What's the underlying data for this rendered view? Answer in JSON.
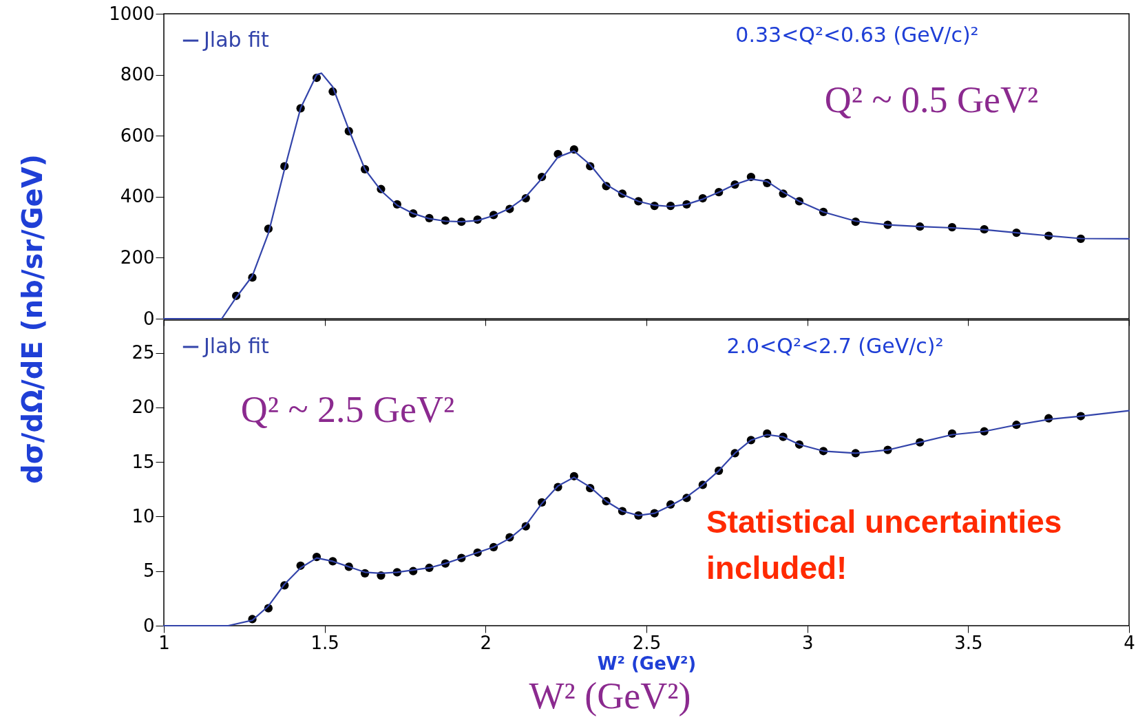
{
  "chart_data": [
    {
      "type": "scatter",
      "ylabel": "dσ/dΩ/dE (nb/sr/GeV)",
      "xlim": [
        1,
        4
      ],
      "xticks": [
        1,
        1.5,
        2,
        2.5,
        3,
        3.5,
        4
      ],
      "ylim": [
        0,
        1000
      ],
      "yticks": [
        0,
        200,
        400,
        600,
        800,
        1000
      ],
      "tick_labels": "y",
      "legend": "top left",
      "grid": false,
      "annotations": [
        "0.33<Q²<0.63 (GeV/c)²",
        "Q² ~ 0.5 GeV²"
      ],
      "series": [
        {
          "type": "scatter",
          "marker": "circle",
          "color": "#000000",
          "x": [
            1.225,
            1.275,
            1.325,
            1.375,
            1.425,
            1.475,
            1.525,
            1.575,
            1.625,
            1.675,
            1.725,
            1.775,
            1.825,
            1.875,
            1.925,
            1.975,
            2.025,
            2.075,
            2.125,
            2.175,
            2.225,
            2.275,
            2.325,
            2.375,
            2.425,
            2.475,
            2.525,
            2.575,
            2.625,
            2.675,
            2.725,
            2.775,
            2.825,
            2.875,
            2.925,
            2.975,
            3.05,
            3.15,
            3.25,
            3.35,
            3.45,
            3.55,
            3.65,
            3.75,
            3.85
          ],
          "values": [
            75,
            135,
            295,
            500,
            690,
            790,
            745,
            615,
            490,
            425,
            375,
            345,
            330,
            322,
            318,
            325,
            340,
            360,
            395,
            465,
            540,
            555,
            500,
            435,
            410,
            385,
            370,
            370,
            375,
            395,
            415,
            440,
            465,
            445,
            410,
            385,
            350,
            318,
            308,
            302,
            300,
            293,
            282,
            272,
            262
          ]
        },
        {
          "type": "line",
          "name": "Jlab fit",
          "marker": "none",
          "color": "#3344aa",
          "x": [
            1,
            1.18,
            1.225,
            1.275,
            1.325,
            1.375,
            1.425,
            1.475,
            1.49,
            1.525,
            1.575,
            1.625,
            1.675,
            1.725,
            1.775,
            1.825,
            1.875,
            1.925,
            1.975,
            2.025,
            2.075,
            2.125,
            2.175,
            2.225,
            2.275,
            2.325,
            2.375,
            2.425,
            2.475,
            2.525,
            2.575,
            2.625,
            2.675,
            2.725,
            2.775,
            2.825,
            2.875,
            2.925,
            2.975,
            3.05,
            3.15,
            3.25,
            3.35,
            3.45,
            3.55,
            3.65,
            3.75,
            3.85,
            4
          ],
          "values": [
            0,
            0,
            70,
            140,
            280,
            490,
            690,
            800,
            805,
            760,
            620,
            490,
            420,
            372,
            345,
            328,
            320,
            318,
            322,
            338,
            362,
            400,
            460,
            530,
            550,
            505,
            440,
            408,
            385,
            372,
            368,
            375,
            392,
            415,
            440,
            458,
            450,
            415,
            385,
            350,
            320,
            308,
            302,
            298,
            292,
            282,
            272,
            263,
            262
          ]
        }
      ]
    },
    {
      "type": "scatter",
      "xlabel": "W² (GeV²)",
      "xlim": [
        1,
        4
      ],
      "xticks": [
        1,
        1.5,
        2,
        2.5,
        3,
        3.5,
        4
      ],
      "ylim": [
        0,
        28
      ],
      "yticks": [
        0,
        5,
        10,
        15,
        20,
        25
      ],
      "legend": "top left",
      "grid": false,
      "annotations": [
        "2.0<Q²<2.7 (GeV/c)²",
        "Q² ~ 2.5 GeV²",
        "Statistical uncertainties included!",
        "W² (GeV²)"
      ],
      "series": [
        {
          "type": "scatter",
          "marker": "circle",
          "color": "#000000",
          "x": [
            1.275,
            1.325,
            1.375,
            1.425,
            1.475,
            1.525,
            1.575,
            1.625,
            1.675,
            1.725,
            1.775,
            1.825,
            1.875,
            1.925,
            1.975,
            2.025,
            2.075,
            2.125,
            2.175,
            2.225,
            2.275,
            2.325,
            2.375,
            2.425,
            2.475,
            2.525,
            2.575,
            2.625,
            2.675,
            2.725,
            2.775,
            2.825,
            2.875,
            2.925,
            2.975,
            3.05,
            3.15,
            3.25,
            3.35,
            3.45,
            3.55,
            3.65,
            3.75,
            3.85
          ],
          "values": [
            0.6,
            1.6,
            3.7,
            5.5,
            6.3,
            5.9,
            5.4,
            4.8,
            4.6,
            4.9,
            5.0,
            5.3,
            5.7,
            6.2,
            6.7,
            7.2,
            8.1,
            9.1,
            11.3,
            12.7,
            13.7,
            12.6,
            11.4,
            10.5,
            10.1,
            10.3,
            11.1,
            11.7,
            12.9,
            14.2,
            15.8,
            17.0,
            17.6,
            17.3,
            16.6,
            16.0,
            15.8,
            16.1,
            16.8,
            17.6,
            17.8,
            18.4,
            19.0,
            19.2
          ]
        },
        {
          "type": "line",
          "name": "Jlab fit",
          "marker": "none",
          "color": "#3344aa",
          "x": [
            1,
            1.2,
            1.275,
            1.325,
            1.375,
            1.425,
            1.475,
            1.525,
            1.575,
            1.625,
            1.675,
            1.725,
            1.775,
            1.825,
            1.875,
            1.925,
            1.975,
            2.025,
            2.075,
            2.125,
            2.175,
            2.225,
            2.275,
            2.325,
            2.375,
            2.425,
            2.475,
            2.525,
            2.575,
            2.625,
            2.675,
            2.725,
            2.775,
            2.825,
            2.875,
            2.925,
            2.975,
            3.05,
            3.15,
            3.25,
            3.35,
            3.45,
            3.55,
            3.65,
            3.75,
            3.85,
            4
          ],
          "values": [
            0,
            0,
            0.5,
            1.8,
            3.8,
            5.3,
            6.2,
            5.9,
            5.4,
            4.9,
            4.8,
            4.9,
            5.1,
            5.3,
            5.7,
            6.2,
            6.7,
            7.2,
            8.0,
            9.2,
            11.2,
            12.8,
            13.6,
            12.7,
            11.4,
            10.5,
            10.1,
            10.3,
            11.0,
            11.8,
            12.9,
            14.2,
            15.8,
            17.0,
            17.5,
            17.3,
            16.6,
            16.0,
            15.8,
            16.1,
            16.8,
            17.5,
            17.8,
            18.4,
            18.9,
            19.2,
            19.7
          ]
        }
      ]
    }
  ]
}
